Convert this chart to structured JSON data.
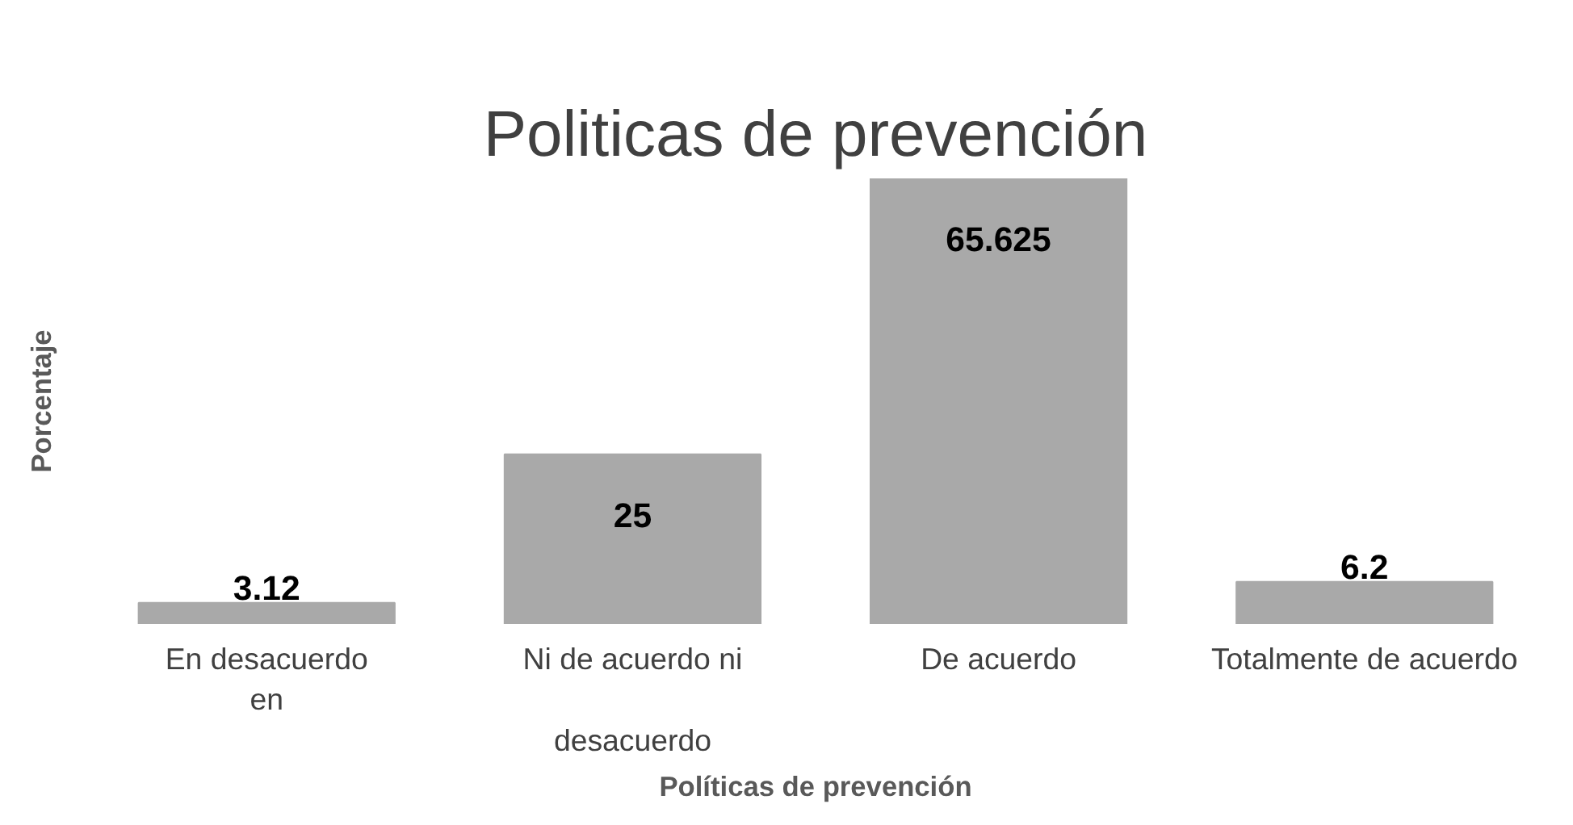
{
  "chart_data": {
    "type": "bar",
    "title": "Politicas de prevención",
    "xlabel": "Políticas de prevención",
    "ylabel": "Porcentaje",
    "categories": [
      "En desacuerdo\nen",
      "Ni de acuerdo ni\n\ndesacuerdo",
      "De acuerdo",
      "Totalmente de acuerdo"
    ],
    "values": [
      3.12,
      25,
      65.625,
      6.2
    ],
    "color": "#a9a9a9",
    "data_labels": true,
    "grid": false
  }
}
